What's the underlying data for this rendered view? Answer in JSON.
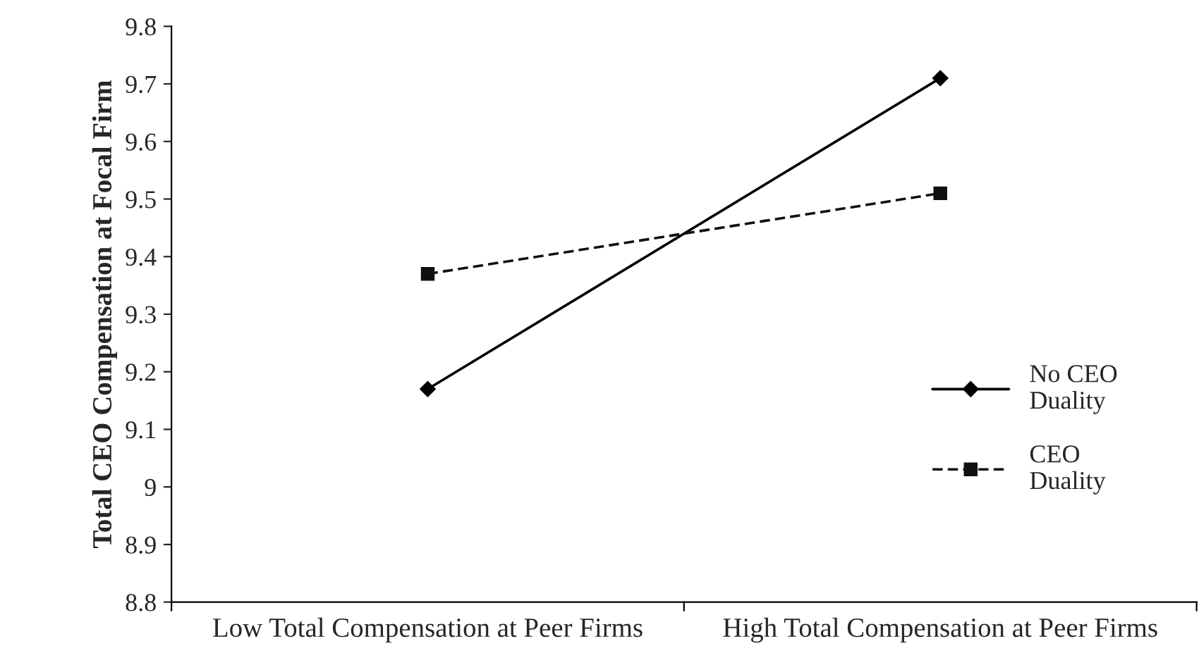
{
  "chart_data": {
    "type": "line",
    "ylabel": "Total CEO Compensation at Focal Firm",
    "categories": [
      "Low Total Compensation at Peer Firms",
      "High Total Compensation at Peer Firms"
    ],
    "series": [
      {
        "name": "No CEO\nDuality",
        "color": "#000000",
        "values": [
          9.17,
          9.71
        ],
        "marker": "diamond",
        "line_style": "solid"
      },
      {
        "name": "CEO\nDuality",
        "color": "#101010",
        "values": [
          9.37,
          9.51
        ],
        "marker": "square",
        "line_style": "dashed"
      }
    ],
    "ylim": [
      8.8,
      9.8
    ],
    "yticks": [
      8.8,
      8.9,
      9,
      9.1,
      9.2,
      9.3,
      9.4,
      9.5,
      9.6,
      9.7,
      9.8
    ],
    "grid": false,
    "legend": "right"
  }
}
